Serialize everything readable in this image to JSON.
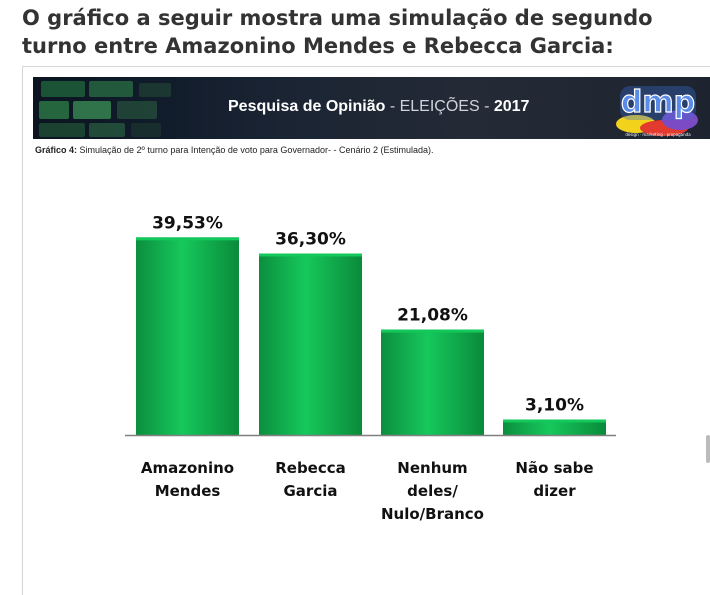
{
  "page": {
    "heading": "O gráfico a seguir mostra uma simulação de segundo turno entre Amazonino Mendes e Rebecca Garcia:"
  },
  "banner": {
    "title_bold": "Pesquisa de Opinião",
    "title_light": " - ELEIÇÕES - ",
    "year": "2017",
    "logo_text": "dmp",
    "logo_tagline": "design · marketing · propaganda"
  },
  "caption": {
    "label": "Gráfico 4:",
    "text": " Simulação de 2º turno para Intenção de voto para Governador- - Cenário 2 (Estimulada)."
  },
  "colors": {
    "bar_top": "#12c85a",
    "bar_mid": "#0fa84a",
    "bar_bottom": "#0a7e36",
    "axis": "#808080",
    "banner_bg": "#1a2230"
  },
  "chart_data": {
    "type": "bar",
    "categories": [
      [
        "Amazonino",
        "Mendes"
      ],
      [
        "Rebecca",
        "Garcia"
      ],
      [
        "Nenhum",
        "deles/",
        "Nulo/Branco"
      ],
      [
        "Não sabe",
        "dizer"
      ]
    ],
    "values": [
      39.53,
      36.3,
      21.08,
      3.1
    ],
    "value_labels": [
      "39,53%",
      "36,30%",
      "21,08%",
      "3,10%"
    ],
    "ylim": [
      0,
      40
    ],
    "grid": false,
    "legend": "none"
  }
}
